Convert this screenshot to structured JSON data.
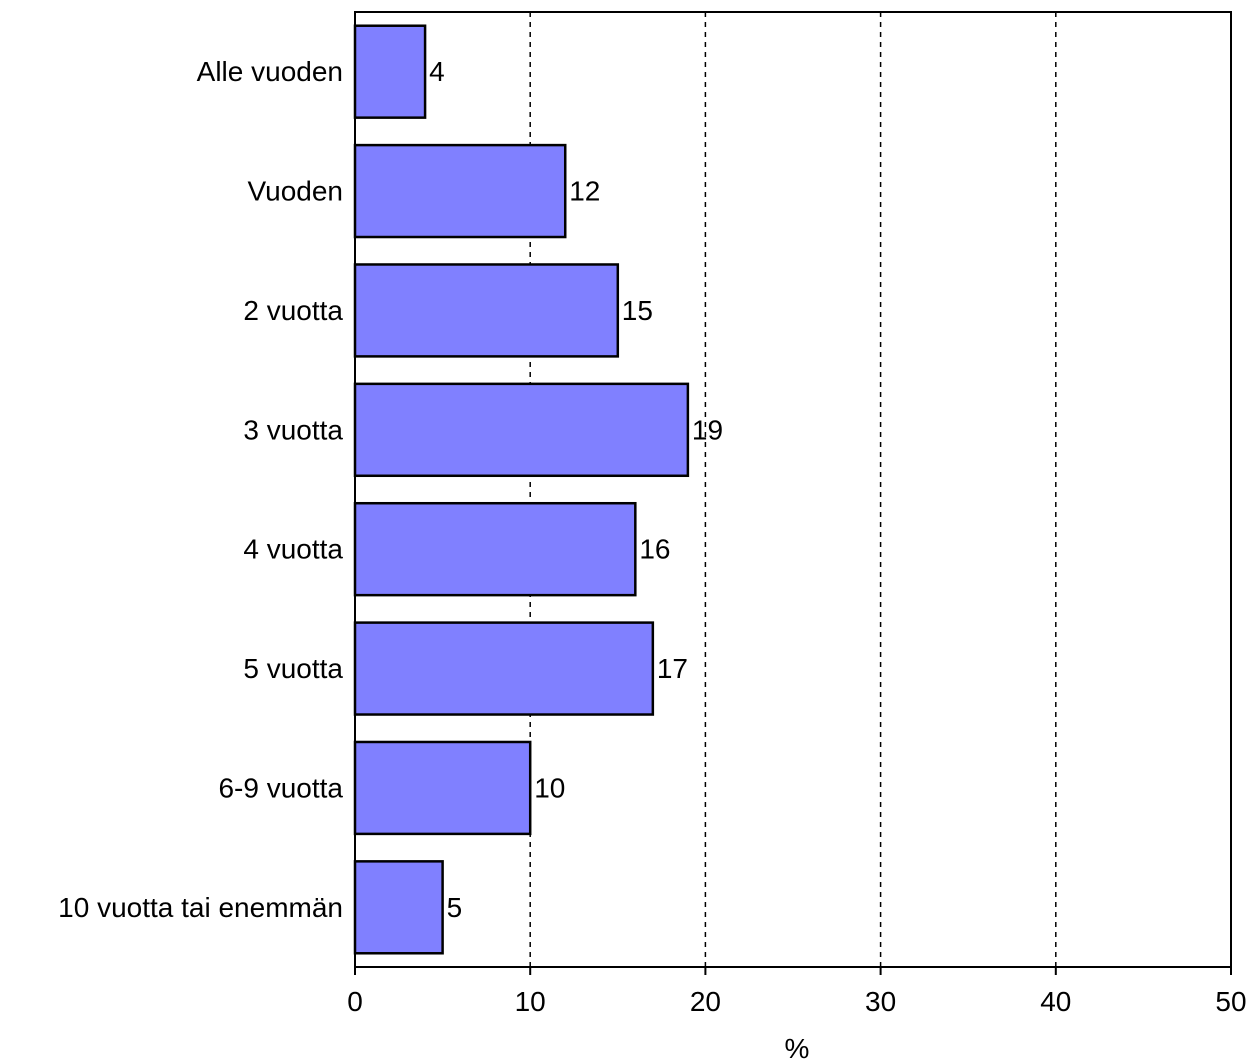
{
  "chart_data": {
    "type": "bar",
    "orientation": "horizontal",
    "categories": [
      "Alle vuoden",
      "Vuoden",
      "2 vuotta",
      "3 vuotta",
      "4 vuotta",
      "5 vuotta",
      "6-9 vuotta",
      "10 vuotta tai enemmän"
    ],
    "values": [
      4,
      12,
      15,
      19,
      16,
      17,
      10,
      5
    ],
    "data_labels": [
      "4",
      "12",
      "15",
      "19",
      "16",
      "17",
      "10",
      "5"
    ],
    "title": "",
    "xlabel": "%",
    "ylabel": "",
    "xlim": [
      0,
      50
    ],
    "x_ticks": [
      0,
      10,
      20,
      30,
      40,
      50
    ],
    "x_tick_labels": [
      "0",
      "10",
      "20",
      "30",
      "40",
      "50"
    ],
    "grid": "vertical dashed",
    "legend": "none",
    "colors": {
      "bar_fill": "#8080FF",
      "bar_stroke": "#000000",
      "grid": "#000000",
      "background": "#FFFFFF"
    }
  }
}
